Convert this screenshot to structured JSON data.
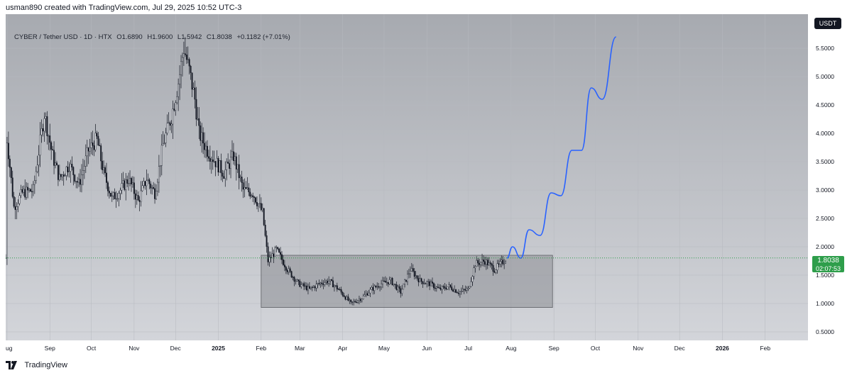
{
  "credit": "usman890 created with TradingView.com, Jul 29, 2025 10:52 UTC-3",
  "legend": {
    "symbol": "CYBER / Tether USD · 1D · HTX",
    "open": "O1.6890",
    "high": "H1.9600",
    "low": "L1.5942",
    "close": "C1.8038",
    "change": "+0.1182 (+7.01%)"
  },
  "quote_currency": "USDT",
  "price_badge": {
    "price": "1.8038",
    "countdown": "02:07:53"
  },
  "footer": {
    "brand": "TradingView"
  },
  "colors": {
    "background": "#c8cbd3",
    "candle": "#131722",
    "projection": "#2962ff",
    "range_box": "#8c8e93",
    "badge": "#2e9e4b"
  },
  "chart_data": {
    "type": "candlestick",
    "y_axis": {
      "min": 0.35,
      "max": 6.1,
      "ticks": [
        "0.5000",
        "1.0000",
        "1.5000",
        "2.0000",
        "2.5000",
        "3.0000",
        "3.5000",
        "4.0000",
        "4.5000",
        "5.0000",
        "5.5000"
      ]
    },
    "x_axis": {
      "ticks": [
        "Aug",
        "Sep",
        "Oct",
        "Nov",
        "Dec",
        "2025",
        "Feb",
        "Mar",
        "Apr",
        "May",
        "Jun",
        "Jul",
        "Aug",
        "Sep",
        "Oct",
        "Nov",
        "Dec",
        "2026",
        "Feb"
      ]
    },
    "ohlc": {
      "open": 1.689,
      "high": 1.96,
      "low": 1.5942,
      "close": 1.8038,
      "change": 0.1182,
      "change_pct": 7.01
    },
    "price_path": [
      [
        "2024-08-01",
        3.9
      ],
      [
        "2024-08-06",
        2.7
      ],
      [
        "2024-08-12",
        2.95
      ],
      [
        "2024-08-20",
        3.0
      ],
      [
        "2024-08-28",
        4.35
      ],
      [
        "2024-09-03",
        3.6
      ],
      [
        "2024-09-08",
        3.2
      ],
      [
        "2024-09-15",
        3.45
      ],
      [
        "2024-09-22",
        3.1
      ],
      [
        "2024-09-29",
        3.7
      ],
      [
        "2024-10-05",
        3.9
      ],
      [
        "2024-10-10",
        3.3
      ],
      [
        "2024-10-16",
        2.85
      ],
      [
        "2024-10-22",
        3.0
      ],
      [
        "2024-10-28",
        3.2
      ],
      [
        "2024-11-04",
        2.8
      ],
      [
        "2024-11-10",
        3.2
      ],
      [
        "2024-11-16",
        2.95
      ],
      [
        "2024-11-22",
        3.8
      ],
      [
        "2024-11-28",
        4.3
      ],
      [
        "2024-12-03",
        4.9
      ],
      [
        "2024-12-07",
        5.5
      ],
      [
        "2024-12-11",
        5.1
      ],
      [
        "2024-12-15",
        4.6
      ],
      [
        "2024-12-18",
        4.0
      ],
      [
        "2024-12-24",
        3.7
      ],
      [
        "2024-12-30",
        3.5
      ],
      [
        "2025-01-05",
        3.3
      ],
      [
        "2025-01-12",
        3.6
      ],
      [
        "2025-01-19",
        3.0
      ],
      [
        "2025-01-26",
        2.95
      ],
      [
        "2025-02-02",
        2.6
      ],
      [
        "2025-02-06",
        1.75
      ],
      [
        "2025-02-12",
        1.95
      ],
      [
        "2025-02-20",
        1.6
      ],
      [
        "2025-02-28",
        1.35
      ],
      [
        "2025-03-08",
        1.25
      ],
      [
        "2025-03-15",
        1.35
      ],
      [
        "2025-03-22",
        1.4
      ],
      [
        "2025-03-29",
        1.25
      ],
      [
        "2025-04-07",
        1.0
      ],
      [
        "2025-04-15",
        1.1
      ],
      [
        "2025-04-22",
        1.25
      ],
      [
        "2025-04-29",
        1.35
      ],
      [
        "2025-05-06",
        1.4
      ],
      [
        "2025-05-13",
        1.2
      ],
      [
        "2025-05-20",
        1.6
      ],
      [
        "2025-05-27",
        1.4
      ],
      [
        "2025-06-03",
        1.35
      ],
      [
        "2025-06-10",
        1.25
      ],
      [
        "2025-06-17",
        1.3
      ],
      [
        "2025-06-24",
        1.2
      ],
      [
        "2025-07-01",
        1.25
      ],
      [
        "2025-07-06",
        1.7
      ],
      [
        "2025-07-13",
        1.75
      ],
      [
        "2025-07-20",
        1.6
      ],
      [
        "2025-07-29",
        1.8038
      ]
    ],
    "projection_path": [
      [
        "2025-07-29",
        1.8
      ],
      [
        "2025-08-02",
        2.0
      ],
      [
        "2025-08-08",
        1.8
      ],
      [
        "2025-08-14",
        2.3
      ],
      [
        "2025-08-22",
        2.2
      ],
      [
        "2025-08-30",
        2.95
      ],
      [
        "2025-09-06",
        2.9
      ],
      [
        "2025-09-14",
        3.7
      ],
      [
        "2025-09-21",
        3.7
      ],
      [
        "2025-09-28",
        4.8
      ],
      [
        "2025-10-06",
        4.6
      ],
      [
        "2025-10-16",
        5.7
      ]
    ],
    "range_box": {
      "x_start": "2025-02-01",
      "x_end": "2025-08-31",
      "y_low": 0.93,
      "y_high": 1.85
    }
  }
}
